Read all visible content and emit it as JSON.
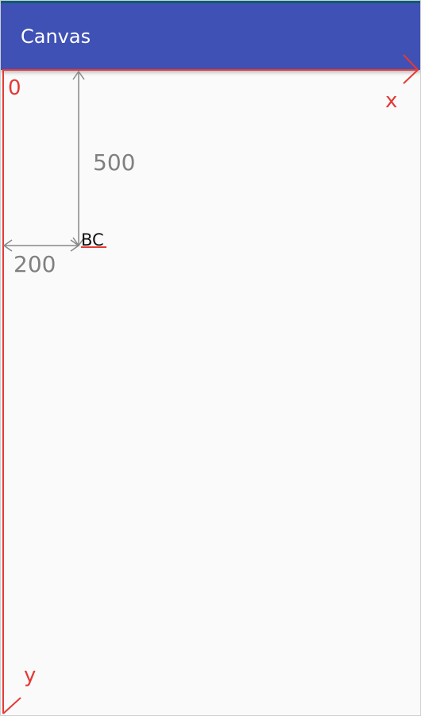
{
  "app_bar": {
    "title": "Canvas",
    "color": "#3f51b5"
  },
  "canvas": {
    "origin_label": "0",
    "x_axis_label": "x",
    "y_axis_label": "y",
    "axis_color": "#e53935",
    "dimension_color": "#888888",
    "dimension_vertical_label": "500",
    "dimension_horizontal_label": "200",
    "drawn_text": "BC",
    "drawn_text_color": "#111111",
    "baseline_color": "#e53935"
  }
}
